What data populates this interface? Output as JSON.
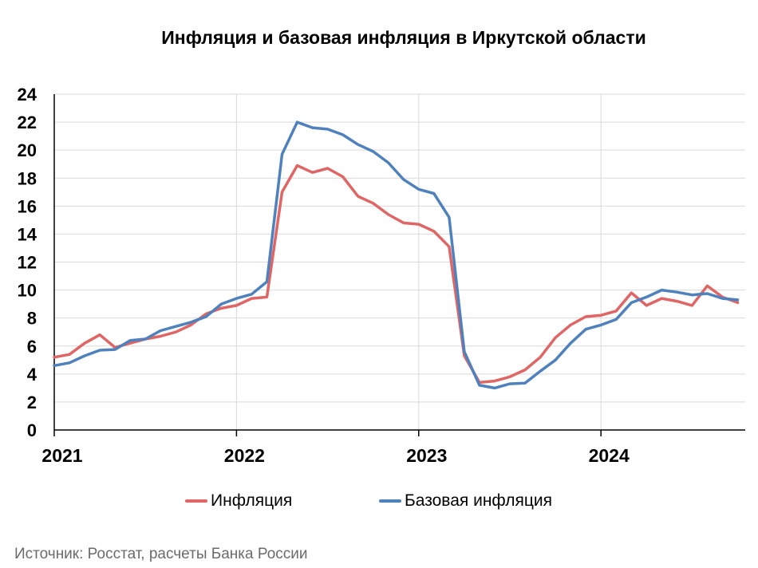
{
  "chart_data": {
    "type": "line",
    "title": "Инфляция и базовая инфляция в Иркутской области",
    "xlabel": "",
    "ylabel": "",
    "ylim": [
      0,
      24
    ],
    "yticks": [
      0,
      2,
      4,
      6,
      8,
      10,
      12,
      14,
      16,
      18,
      20,
      22,
      24
    ],
    "xtick_labels": [
      "2021",
      "2022",
      "2023",
      "2024"
    ],
    "grid": true,
    "legend_position": "bottom",
    "x": [
      "2021-01",
      "2021-02",
      "2021-03",
      "2021-04",
      "2021-05",
      "2021-06",
      "2021-07",
      "2021-08",
      "2021-09",
      "2021-10",
      "2021-11",
      "2021-12",
      "2022-01",
      "2022-02",
      "2022-03",
      "2022-04",
      "2022-05",
      "2022-06",
      "2022-07",
      "2022-08",
      "2022-09",
      "2022-10",
      "2022-11",
      "2022-12",
      "2023-01",
      "2023-02",
      "2023-03",
      "2023-04",
      "2023-05",
      "2023-06",
      "2023-07",
      "2023-08",
      "2023-09",
      "2023-10",
      "2023-11",
      "2023-12",
      "2024-01",
      "2024-02",
      "2024-03",
      "2024-04",
      "2024-05",
      "2024-06",
      "2024-07",
      "2024-08",
      "2024-09",
      "2024-10"
    ],
    "series": [
      {
        "name": "Инфляция",
        "color": "#e06666",
        "values": [
          5.2,
          5.4,
          6.2,
          6.8,
          5.9,
          6.2,
          6.5,
          6.7,
          7.0,
          7.5,
          8.3,
          8.7,
          8.9,
          9.4,
          9.5,
          17.0,
          18.9,
          18.4,
          18.7,
          18.1,
          16.7,
          16.2,
          15.4,
          14.8,
          14.7,
          14.2,
          13.1,
          5.3,
          3.4,
          3.5,
          3.8,
          4.3,
          5.2,
          6.6,
          7.5,
          8.1,
          8.2,
          8.5,
          9.8,
          8.9,
          9.4,
          9.2,
          8.9,
          10.3,
          9.5,
          9.1
        ]
      },
      {
        "name": "Базовая инфляция",
        "color": "#4f81bd",
        "values": [
          4.6,
          4.8,
          5.3,
          5.7,
          5.75,
          6.4,
          6.5,
          7.1,
          7.4,
          7.7,
          8.1,
          9.0,
          9.4,
          9.7,
          10.6,
          19.7,
          22.0,
          21.6,
          21.5,
          21.1,
          20.4,
          19.9,
          19.1,
          17.9,
          17.2,
          16.9,
          15.2,
          5.6,
          3.2,
          3.0,
          3.3,
          3.35,
          4.2,
          5.0,
          6.2,
          7.2,
          7.5,
          7.9,
          9.1,
          9.5,
          10.0,
          9.85,
          9.65,
          9.75,
          9.4,
          9.3
        ]
      }
    ]
  },
  "source_note": "Источник: Росстат, расчеты Банка России"
}
